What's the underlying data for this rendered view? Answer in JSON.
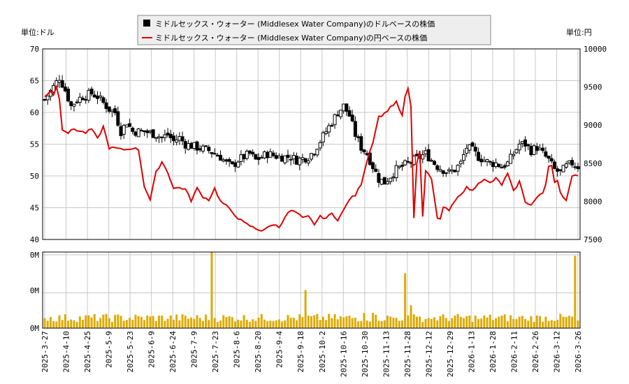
{
  "colors": {
    "candle": "#000000",
    "jpy_line": "#dd0000",
    "volume": "#ddaa00",
    "grid": "#c8c8c8",
    "legend_bg": "#eeeeee"
  },
  "chart_data": [
    {
      "type": "candlestick",
      "title": "",
      "unit_left": "単位:ドル",
      "unit_right": "単位:円",
      "legend": [
        {
          "label": "ミドルセックス・ウォーター (Middlesex Water Company)のドルベースの株価",
          "marker": "square",
          "color": "#000000"
        },
        {
          "label": "ミドルセックス・ウォーター (Middlesex Water Company)の円ベースの株価",
          "marker": "line",
          "color": "#dd0000"
        }
      ],
      "ylim": [
        40,
        70
      ],
      "yticks": [
        "40",
        "45",
        "50",
        "55",
        "60",
        "65",
        "70"
      ],
      "y2lim": [
        7500,
        10000
      ],
      "y2ticks": [
        "7500",
        "8000",
        "8500",
        "9000",
        "9500",
        "10000"
      ],
      "xlabels": [
        "2025-3-27",
        "2025-4-10",
        "2025-4-25",
        "2025-5-9",
        "2025-5-23",
        "2025-6-9",
        "2025-6-24",
        "2025-7-9",
        "2025-7-23",
        "2025-8-6",
        "2025-8-20",
        "2025-9-4",
        "2025-9-18",
        "2025-10-2",
        "2025-10-16",
        "2025-10-30",
        "2025-11-13",
        "2025-11-28",
        "2025-12-12",
        "2025-12-29",
        "2026-1-13",
        "2026-1-28",
        "2026-2-11",
        "2026-2-26",
        "2026-3-12",
        "2026-3-26"
      ],
      "price_usd_anchors": [
        [
          0,
          62.0
        ],
        [
          3,
          64.0
        ],
        [
          5,
          65.5
        ],
        [
          7,
          63.5
        ],
        [
          9,
          61.0
        ],
        [
          11,
          62.0
        ],
        [
          13,
          62.5
        ],
        [
          16,
          63.0
        ],
        [
          18,
          62.5
        ],
        [
          20,
          61.5
        ],
        [
          22,
          60.5
        ],
        [
          24,
          60.0
        ],
        [
          26,
          57.0
        ],
        [
          28,
          58.5
        ],
        [
          30,
          57.0
        ],
        [
          34,
          57.0
        ],
        [
          38,
          56.5
        ],
        [
          40,
          56.0
        ],
        [
          42,
          56.5
        ],
        [
          44,
          55.5
        ],
        [
          46,
          56.0
        ],
        [
          48,
          55.0
        ],
        [
          52,
          54.5
        ],
        [
          56,
          54.0
        ],
        [
          58,
          53.5
        ],
        [
          60,
          53.0
        ],
        [
          62,
          52.0
        ],
        [
          64,
          51.5
        ],
        [
          66,
          52.5
        ],
        [
          68,
          53.0
        ],
        [
          70,
          53.5
        ],
        [
          72,
          52.5
        ],
        [
          74,
          53.0
        ],
        [
          76,
          53.5
        ],
        [
          80,
          53.0
        ],
        [
          84,
          53.0
        ],
        [
          86,
          52.5
        ],
        [
          90,
          53.0
        ],
        [
          92,
          54.0
        ],
        [
          94,
          55.5
        ],
        [
          96,
          57.0
        ],
        [
          98,
          58.5
        ],
        [
          100,
          60.0
        ],
        [
          102,
          61.0
        ],
        [
          104,
          59.5
        ],
        [
          106,
          56.5
        ],
        [
          108,
          54.5
        ],
        [
          110,
          53.5
        ],
        [
          112,
          51.5
        ],
        [
          114,
          49.5
        ],
        [
          116,
          49.0
        ],
        [
          118,
          50.0
        ],
        [
          120,
          51.0
        ],
        [
          122,
          51.5
        ],
        [
          124,
          52.0
        ],
        [
          126,
          52.5
        ],
        [
          128,
          53.0
        ],
        [
          130,
          53.5
        ],
        [
          132,
          52.5
        ],
        [
          134,
          51.5
        ],
        [
          136,
          51.0
        ],
        [
          138,
          50.5
        ],
        [
          140,
          51.0
        ],
        [
          142,
          52.0
        ],
        [
          144,
          54.5
        ],
        [
          146,
          54.0
        ],
        [
          148,
          53.0
        ],
        [
          150,
          52.5
        ],
        [
          152,
          52.0
        ],
        [
          154,
          52.0
        ],
        [
          156,
          51.5
        ],
        [
          158,
          52.0
        ],
        [
          160,
          53.5
        ],
        [
          162,
          55.0
        ],
        [
          164,
          55.0
        ],
        [
          166,
          54.0
        ],
        [
          168,
          54.5
        ],
        [
          170,
          53.5
        ],
        [
          172,
          52.5
        ],
        [
          174,
          51.0
        ],
        [
          176,
          50.5
        ],
        [
          178,
          51.5
        ],
        [
          180,
          52.0
        ],
        [
          182,
          51.5
        ]
      ],
      "price_jpy_anchors": [
        [
          0,
          9380
        ],
        [
          2,
          9450
        ],
        [
          3,
          9400
        ],
        [
          4,
          9500
        ],
        [
          5,
          9350
        ],
        [
          6,
          8950
        ],
        [
          8,
          8900
        ],
        [
          10,
          8950
        ],
        [
          12,
          8920
        ],
        [
          14,
          8900
        ],
        [
          16,
          8950
        ],
        [
          18,
          8820
        ],
        [
          20,
          8980
        ],
        [
          22,
          8700
        ],
        [
          24,
          8700
        ],
        [
          26,
          8680
        ],
        [
          28,
          8680
        ],
        [
          30,
          8700
        ],
        [
          32,
          8680
        ],
        [
          34,
          8200
        ],
        [
          36,
          8020
        ],
        [
          38,
          8380
        ],
        [
          40,
          8520
        ],
        [
          42,
          8380
        ],
        [
          44,
          8170
        ],
        [
          46,
          8180
        ],
        [
          48,
          8160
        ],
        [
          50,
          8010
        ],
        [
          52,
          8170
        ],
        [
          54,
          8060
        ],
        [
          56,
          8020
        ],
        [
          58,
          8170
        ],
        [
          60,
          8000
        ],
        [
          62,
          7940
        ],
        [
          64,
          7860
        ],
        [
          66,
          7780
        ],
        [
          68,
          7720
        ],
        [
          70,
          7680
        ],
        [
          72,
          7640
        ],
        [
          74,
          7620
        ],
        [
          76,
          7650
        ],
        [
          78,
          7700
        ],
        [
          80,
          7660
        ],
        [
          82,
          7800
        ],
        [
          84,
          7880
        ],
        [
          86,
          7850
        ],
        [
          88,
          7780
        ],
        [
          90,
          7800
        ],
        [
          92,
          7700
        ],
        [
          94,
          7800
        ],
        [
          96,
          7780
        ],
        [
          98,
          7840
        ],
        [
          100,
          7760
        ],
        [
          102,
          7880
        ],
        [
          104,
          8030
        ],
        [
          106,
          8080
        ],
        [
          108,
          8230
        ],
        [
          110,
          8540
        ],
        [
          112,
          8780
        ],
        [
          114,
          9110
        ],
        [
          116,
          9150
        ],
        [
          118,
          9240
        ],
        [
          120,
          9300
        ],
        [
          122,
          9120
        ],
        [
          124,
          8950
        ],
        [
          126,
          7900
        ],
        [
          128,
          8650
        ],
        [
          130,
          8400
        ],
        [
          132,
          8300
        ],
        [
          134,
          8100
        ],
        [
          136,
          7920
        ],
        [
          138,
          7880
        ],
        [
          140,
          8000
        ],
        [
          142,
          8100
        ],
        [
          144,
          8180
        ],
        [
          146,
          8140
        ],
        [
          148,
          8250
        ],
        [
          150,
          8280
        ],
        [
          152,
          8240
        ],
        [
          154,
          8300
        ],
        [
          156,
          8220
        ],
        [
          158,
          8360
        ],
        [
          160,
          8130
        ],
        [
          162,
          8260
        ],
        [
          164,
          8000
        ],
        [
          166,
          7950
        ],
        [
          168,
          8050
        ],
        [
          170,
          8110
        ],
        [
          172,
          8350
        ],
        [
          174,
          8450
        ],
        [
          176,
          8120
        ],
        [
          178,
          8010
        ],
        [
          180,
          8320
        ],
        [
          182,
          8350
        ]
      ],
      "price_jpy_spikes": [
        [
          123,
          9380
        ],
        [
          124,
          9480
        ],
        [
          125,
          9250
        ],
        [
          126,
          7780
        ],
        [
          127,
          8500
        ],
        [
          129,
          7800
        ],
        [
          133,
          8040
        ],
        [
          134,
          7780
        ],
        [
          135,
          7770
        ],
        [
          172,
          8460
        ],
        [
          173,
          8470
        ],
        [
          174,
          8250
        ]
      ]
    },
    {
      "type": "bar",
      "ylabel_ticks": [
        "0M",
        "0M",
        "0M"
      ],
      "bar_count": 183,
      "volume_base": 0.18,
      "volume_spikes": [
        [
          57,
          1.05
        ],
        [
          89,
          0.5
        ],
        [
          109,
          0.2
        ],
        [
          112,
          0.2
        ],
        [
          123,
          0.72
        ],
        [
          125,
          0.3
        ],
        [
          127,
          0.15
        ],
        [
          130,
          0.12
        ],
        [
          148,
          0.12
        ],
        [
          160,
          0.12
        ],
        [
          164,
          0.12
        ],
        [
          181,
          0.95
        ],
        [
          182,
          0.1
        ]
      ]
    }
  ]
}
